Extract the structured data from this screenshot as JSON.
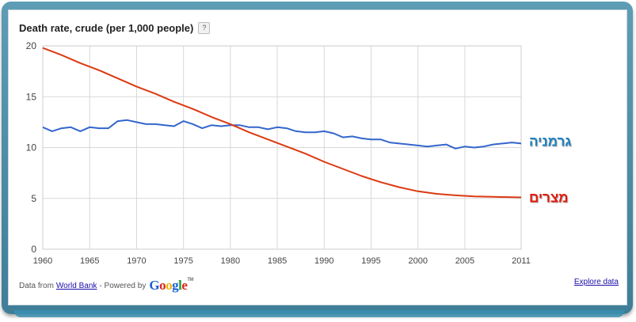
{
  "footer": {
    "data_from": "Data from",
    "world_bank_link": "World Bank",
    "powered_by": "- Powered by",
    "google_logo": "Google",
    "tm": "TM",
    "explore_link": "Explore data"
  },
  "help_label": "?",
  "colors": {
    "germany": "#3366cc",
    "egypt": "#dc3912",
    "germany_label": "#1d7fbf",
    "egypt_label": "#e01a0c",
    "frame": "#4b8ba5"
  },
  "chart_data": {
    "type": "line",
    "title": "Death rate, crude (per 1,000 people)",
    "xlabel": "",
    "ylabel": "",
    "xlim": [
      1960,
      2011
    ],
    "ylim": [
      0,
      20
    ],
    "x_ticks": [
      "1960",
      "1965",
      "1970",
      "1975",
      "1980",
      "1985",
      "1990",
      "1995",
      "2000",
      "2005",
      "2011"
    ],
    "y_ticks": [
      "0",
      "5",
      "10",
      "15",
      "20"
    ],
    "grid": true,
    "legend": "inline-right",
    "series": [
      {
        "name": "גרמניה",
        "color": "#3366cc",
        "x": [
          1960,
          1961,
          1962,
          1963,
          1964,
          1965,
          1966,
          1967,
          1968,
          1969,
          1970,
          1971,
          1972,
          1973,
          1974,
          1975,
          1976,
          1977,
          1978,
          1979,
          1980,
          1981,
          1982,
          1983,
          1984,
          1985,
          1986,
          1987,
          1988,
          1989,
          1990,
          1991,
          1992,
          1993,
          1994,
          1995,
          1996,
          1997,
          1998,
          1999,
          2000,
          2001,
          2002,
          2003,
          2004,
          2005,
          2006,
          2007,
          2008,
          2009,
          2010,
          2011
        ],
        "y": [
          12.0,
          11.6,
          11.9,
          12.0,
          11.6,
          12.0,
          11.9,
          11.9,
          12.6,
          12.7,
          12.5,
          12.3,
          12.3,
          12.2,
          12.1,
          12.6,
          12.3,
          11.9,
          12.2,
          12.1,
          12.2,
          12.2,
          12.0,
          12.0,
          11.8,
          12.0,
          11.9,
          11.6,
          11.5,
          11.5,
          11.6,
          11.4,
          11.0,
          11.1,
          10.9,
          10.8,
          10.8,
          10.5,
          10.4,
          10.3,
          10.2,
          10.1,
          10.2,
          10.3,
          9.9,
          10.1,
          10.0,
          10.1,
          10.3,
          10.4,
          10.5,
          10.4
        ]
      },
      {
        "name": "מצרים",
        "color": "#dc3912",
        "x": [
          1960,
          1962,
          1964,
          1966,
          1968,
          1970,
          1972,
          1974,
          1976,
          1978,
          1980,
          1982,
          1984,
          1986,
          1988,
          1990,
          1992,
          1994,
          1996,
          1998,
          2000,
          2002,
          2004,
          2006,
          2008,
          2011
        ],
        "y": [
          19.8,
          19.1,
          18.3,
          17.6,
          16.8,
          16.0,
          15.3,
          14.5,
          13.8,
          13.0,
          12.3,
          11.5,
          10.8,
          10.1,
          9.4,
          8.6,
          7.9,
          7.2,
          6.6,
          6.1,
          5.7,
          5.45,
          5.3,
          5.2,
          5.15,
          5.1
        ]
      }
    ]
  }
}
